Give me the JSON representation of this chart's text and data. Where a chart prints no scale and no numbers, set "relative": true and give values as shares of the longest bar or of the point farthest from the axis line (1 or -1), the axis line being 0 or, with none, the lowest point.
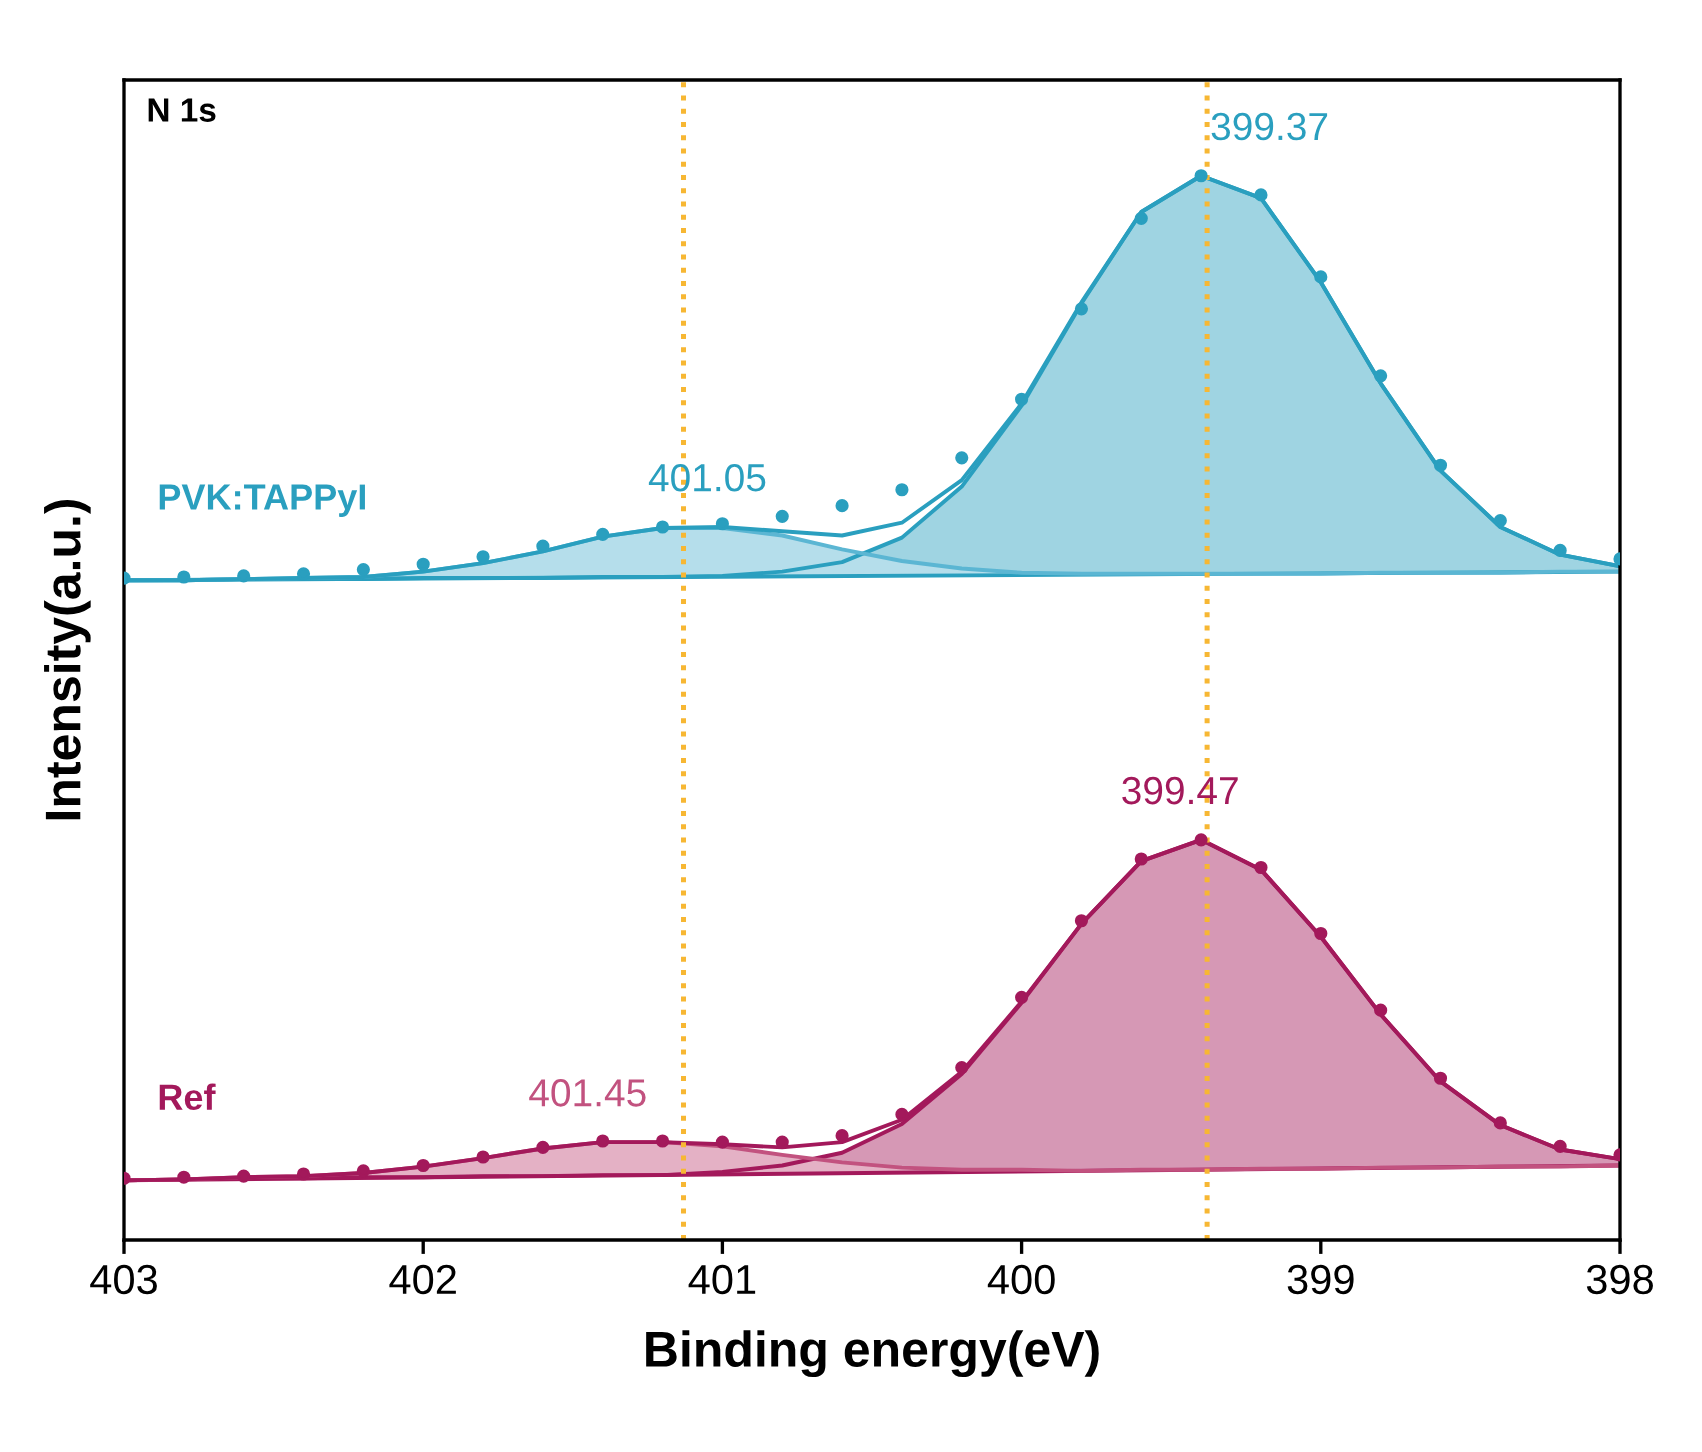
{
  "chart_data": {
    "type": "line",
    "relative": true,
    "xlabel": "Binding energy(eV)",
    "ylabel": "Intensity(a.u.)",
    "xlim": [
      403,
      398
    ],
    "xticks": [
      403,
      402,
      401,
      400,
      399,
      398
    ],
    "tick_labels": "x",
    "grid": false,
    "annotations": [
      "N 1s",
      {
        "text": "399.37",
        "x": 399.37,
        "y": 1.0
      },
      {
        "text": "401.05",
        "x": 401.05,
        "y": 0.67
      },
      {
        "text": "399.47",
        "x": 399.47,
        "y": 0.376
      },
      {
        "text": "401.45",
        "x": 401.45,
        "y": 0.092
      }
    ],
    "ref_lines": [
      {
        "axis": "x",
        "value": 399.38,
        "color": "#f7b733",
        "line_style": "dotted"
      },
      {
        "axis": "x",
        "value": 401.13,
        "color": "#f7b733",
        "line_style": "dotted"
      }
    ],
    "series": [
      {
        "color": "#2a9fbf",
        "x": [
          403,
          398
        ],
        "values": [
          0.62,
          0.628
        ]
      },
      {
        "color": "#2a9fbf",
        "x": [
          403,
          402.8,
          402.6,
          402.4,
          402.2,
          402.0,
          401.8,
          401.6,
          401.4,
          401.2,
          401.0,
          400.8,
          400.6,
          400.4,
          400.2,
          400.0,
          399.8,
          399.6,
          399.4,
          399.2,
          399.0,
          398.8,
          398.6,
          398.4,
          398.2,
          398.0
        ],
        "values": [
          0.62,
          0.62,
          0.621,
          0.621,
          0.621,
          0.622,
          0.622,
          0.622,
          0.623,
          0.623,
          0.624,
          0.628,
          0.637,
          0.66,
          0.708,
          0.784,
          0.88,
          0.966,
          1.0,
          0.979,
          0.9,
          0.805,
          0.723,
          0.67,
          0.644,
          0.633
        ],
        "lower": [
          0.62,
          0.62,
          0.621,
          0.621,
          0.621,
          0.622,
          0.622,
          0.622,
          0.623,
          0.623,
          0.623,
          0.624,
          0.624,
          0.624,
          0.625,
          0.625,
          0.625,
          0.626,
          0.626,
          0.626,
          0.626,
          0.627,
          0.627,
          0.627,
          0.628,
          0.628
        ],
        "upper": [
          0.62,
          0.62,
          0.621,
          0.621,
          0.621,
          0.622,
          0.622,
          0.622,
          0.623,
          0.623,
          0.624,
          0.628,
          0.637,
          0.66,
          0.708,
          0.784,
          0.88,
          0.966,
          1.0,
          0.979,
          0.9,
          0.805,
          0.723,
          0.67,
          0.644,
          0.633
        ]
      },
      {
        "color": "#5bb6d3",
        "x": [
          403,
          402.8,
          402.6,
          402.4,
          402.2,
          402.0,
          401.8,
          401.6,
          401.4,
          401.2,
          401.0,
          400.8,
          400.6,
          400.4,
          400.2,
          400.0,
          399.8,
          399.6,
          399.4,
          399.2,
          399.0,
          398.8,
          398.6,
          398.4,
          398.2,
          398.0
        ],
        "values": [
          0.62,
          0.62,
          0.621,
          0.622,
          0.623,
          0.628,
          0.636,
          0.647,
          0.661,
          0.669,
          0.669,
          0.662,
          0.649,
          0.638,
          0.631,
          0.627,
          0.626,
          0.626,
          0.626,
          0.626,
          0.626,
          0.627,
          0.627,
          0.627,
          0.628,
          0.628
        ],
        "lower": [
          0.62,
          0.62,
          0.621,
          0.621,
          0.621,
          0.622,
          0.622,
          0.622,
          0.623,
          0.623,
          0.623,
          0.624,
          0.624,
          0.624,
          0.625,
          0.625,
          0.625,
          0.626,
          0.626,
          0.626,
          0.626,
          0.627,
          0.627,
          0.627,
          0.628,
          0.628
        ],
        "upper": [
          0.62,
          0.62,
          0.621,
          0.622,
          0.623,
          0.628,
          0.636,
          0.647,
          0.661,
          0.669,
          0.669,
          0.662,
          0.649,
          0.638,
          0.631,
          0.627,
          0.626,
          0.626,
          0.626,
          0.626,
          0.626,
          0.627,
          0.627,
          0.627,
          0.628,
          0.628
        ]
      },
      {
        "color": "#2a9fbf",
        "x": [
          403,
          402.8,
          402.6,
          402.4,
          402.2,
          402.0,
          401.8,
          401.6,
          401.4,
          401.2,
          401.0,
          400.8,
          400.6,
          400.4,
          400.2,
          400.0,
          399.8,
          399.6,
          399.4,
          399.2,
          399.0,
          398.8,
          398.6,
          398.4,
          398.2,
          398.0
        ],
        "values": [
          0.62,
          0.62,
          0.621,
          0.622,
          0.623,
          0.628,
          0.636,
          0.647,
          0.661,
          0.669,
          0.67,
          0.666,
          0.662,
          0.674,
          0.714,
          0.786,
          0.881,
          0.966,
          1.0,
          0.979,
          0.9,
          0.805,
          0.723,
          0.67,
          0.644,
          0.633
        ]
      },
      {
        "type": "scatter",
        "name": "PVK:TAPPyI",
        "color": "#2a9fbf",
        "marker": "circle",
        "x": [
          403,
          402.8,
          402.6,
          402.4,
          402.2,
          402.0,
          401.8,
          401.6,
          401.4,
          401.2,
          401.0,
          400.8,
          400.6,
          400.4,
          400.2,
          400.0,
          399.8,
          399.6,
          399.4,
          399.2,
          399.0,
          398.8,
          398.6,
          398.4,
          398.2,
          398.0
        ],
        "values": [
          0.622,
          0.623,
          0.624,
          0.626,
          0.63,
          0.635,
          0.642,
          0.652,
          0.663,
          0.67,
          0.673,
          0.68,
          0.69,
          0.705,
          0.735,
          0.79,
          0.875,
          0.96,
          1.0,
          0.982,
          0.905,
          0.812,
          0.728,
          0.676,
          0.648,
          0.64
        ]
      },
      {
        "color": "#a3195b",
        "x": [
          403,
          398
        ],
        "values": [
          0.056,
          0.07
        ]
      },
      {
        "color": "#a3195b",
        "x": [
          403,
          402.8,
          402.6,
          402.4,
          402.2,
          402.0,
          401.8,
          401.6,
          401.4,
          401.2,
          401.0,
          400.8,
          400.6,
          400.4,
          400.2,
          400.0,
          399.8,
          399.6,
          399.4,
          399.2,
          399.0,
          398.8,
          398.6,
          398.4,
          398.2,
          398.0
        ],
        "values": [
          0.056,
          0.057,
          0.058,
          0.058,
          0.059,
          0.059,
          0.06,
          0.06,
          0.061,
          0.061,
          0.064,
          0.07,
          0.082,
          0.109,
          0.156,
          0.223,
          0.297,
          0.356,
          0.376,
          0.348,
          0.285,
          0.212,
          0.149,
          0.108,
          0.085,
          0.076
        ],
        "lower": [
          0.056,
          0.057,
          0.058,
          0.058,
          0.059,
          0.059,
          0.06,
          0.06,
          0.061,
          0.061,
          0.062,
          0.063,
          0.063,
          0.064,
          0.064,
          0.065,
          0.065,
          0.066,
          0.066,
          0.067,
          0.067,
          0.068,
          0.068,
          0.069,
          0.069,
          0.07
        ],
        "upper": [
          0.056,
          0.057,
          0.058,
          0.058,
          0.059,
          0.059,
          0.06,
          0.06,
          0.061,
          0.061,
          0.064,
          0.07,
          0.082,
          0.109,
          0.156,
          0.223,
          0.297,
          0.356,
          0.376,
          0.348,
          0.285,
          0.212,
          0.149,
          0.108,
          0.085,
          0.076
        ]
      },
      {
        "color": "#c2527f",
        "x": [
          403,
          402.8,
          402.6,
          402.4,
          402.2,
          402.0,
          401.8,
          401.6,
          401.4,
          401.2,
          401.0,
          400.8,
          400.6,
          400.4,
          400.2,
          400.0,
          399.8,
          399.6,
          399.4,
          399.2,
          399.0,
          398.8,
          398.6,
          398.4,
          398.2,
          398.0
        ],
        "values": [
          0.056,
          0.057,
          0.059,
          0.06,
          0.063,
          0.069,
          0.077,
          0.086,
          0.092,
          0.092,
          0.088,
          0.08,
          0.073,
          0.068,
          0.066,
          0.066,
          0.065,
          0.066,
          0.066,
          0.067,
          0.067,
          0.068,
          0.068,
          0.069,
          0.069,
          0.07
        ],
        "lower": [
          0.056,
          0.057,
          0.058,
          0.058,
          0.059,
          0.059,
          0.06,
          0.06,
          0.061,
          0.061,
          0.062,
          0.063,
          0.063,
          0.064,
          0.064,
          0.065,
          0.065,
          0.066,
          0.066,
          0.067,
          0.067,
          0.068,
          0.068,
          0.069,
          0.069,
          0.07
        ],
        "upper": [
          0.056,
          0.057,
          0.059,
          0.06,
          0.063,
          0.069,
          0.077,
          0.086,
          0.092,
          0.092,
          0.088,
          0.08,
          0.073,
          0.068,
          0.066,
          0.066,
          0.065,
          0.066,
          0.066,
          0.067,
          0.067,
          0.068,
          0.068,
          0.069,
          0.069,
          0.07
        ]
      },
      {
        "color": "#a3195b",
        "x": [
          403,
          402.8,
          402.6,
          402.4,
          402.2,
          402.0,
          401.8,
          401.6,
          401.4,
          401.2,
          401.0,
          400.8,
          400.6,
          400.4,
          400.2,
          400.0,
          399.8,
          399.6,
          399.4,
          399.2,
          399.0,
          398.8,
          398.6,
          398.4,
          398.2,
          398.0
        ],
        "values": [
          0.056,
          0.057,
          0.059,
          0.06,
          0.063,
          0.069,
          0.077,
          0.086,
          0.092,
          0.092,
          0.09,
          0.087,
          0.092,
          0.113,
          0.158,
          0.224,
          0.297,
          0.356,
          0.376,
          0.348,
          0.285,
          0.212,
          0.149,
          0.108,
          0.085,
          0.076
        ]
      },
      {
        "type": "scatter",
        "name": "Ref",
        "color": "#a3195b",
        "marker": "circle",
        "x": [
          403,
          402.8,
          402.6,
          402.4,
          402.2,
          402.0,
          401.8,
          401.6,
          401.4,
          401.2,
          401.0,
          400.8,
          400.6,
          400.4,
          400.2,
          400.0,
          399.8,
          399.6,
          399.4,
          399.2,
          399.0,
          398.8,
          398.6,
          398.4,
          398.2,
          398.0
        ],
        "values": [
          0.058,
          0.059,
          0.06,
          0.062,
          0.065,
          0.07,
          0.078,
          0.087,
          0.093,
          0.093,
          0.092,
          0.092,
          0.098,
          0.118,
          0.162,
          0.228,
          0.3,
          0.358,
          0.376,
          0.35,
          0.288,
          0.216,
          0.152,
          0.11,
          0.088,
          0.08
        ]
      }
    ]
  }
}
